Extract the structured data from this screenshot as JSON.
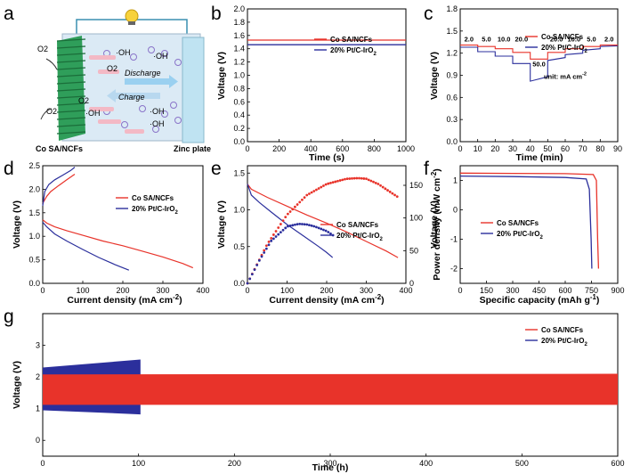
{
  "colors": {
    "co": "#e8332a",
    "pt": "#2b2f9c"
  },
  "panels": {
    "a": "a",
    "b": "b",
    "c": "c",
    "d": "d",
    "e": "e",
    "f": "f",
    "g": "g"
  },
  "schematic": {
    "left_label": "Co SA/NCFs",
    "right_label": "Zinc plate",
    "discharge": "Discharge",
    "charge": "Charge",
    "species": [
      "O2",
      "OH",
      "OH",
      "O2",
      "O2",
      "OH",
      "OH",
      "OH",
      "O2"
    ]
  },
  "legend": {
    "co": "Co SA/NCFs",
    "pt": "20% Pt/C-IrO2"
  },
  "chart_data": [
    {
      "id": "b",
      "type": "line",
      "xlabel": "Time (s)",
      "ylabel": "Voltage (V)",
      "xlim": [
        0,
        1000
      ],
      "ylim": [
        0.0,
        2.0
      ],
      "xticks": [
        0,
        200,
        400,
        600,
        800,
        1000
      ],
      "yticks": [
        0.0,
        0.2,
        0.4,
        0.6,
        0.8,
        1.0,
        1.2,
        1.4,
        1.6,
        1.8,
        2.0
      ],
      "series": [
        {
          "name": "Co SA/NCFs",
          "x": [
            0,
            1000
          ],
          "y": [
            1.53,
            1.53
          ]
        },
        {
          "name": "20% Pt/C-IrO2",
          "x": [
            0,
            1000
          ],
          "y": [
            1.46,
            1.46
          ]
        }
      ]
    },
    {
      "id": "c",
      "type": "line",
      "xlabel": "Time (min)",
      "ylabel": "Voltage (V)",
      "xlim": [
        0,
        90
      ],
      "ylim": [
        0.0,
        1.8
      ],
      "xticks": [
        0,
        10,
        20,
        30,
        40,
        50,
        60,
        70,
        80,
        90
      ],
      "yticks": [
        0.0,
        0.3,
        0.6,
        0.9,
        1.2,
        1.5,
        1.8
      ],
      "annotation": "unit: mA cm-2",
      "current_labels": [
        "2.0",
        "5.0",
        "10.0",
        "20.0",
        "50.0",
        "20.0",
        "10.0",
        "5.0",
        "2.0"
      ],
      "series": [
        {
          "name": "Co SA/NCFs",
          "x": [
            0,
            10,
            10,
            20,
            20,
            30,
            30,
            40,
            40,
            50,
            50,
            60,
            60,
            70,
            70,
            80,
            80,
            90
          ],
          "y": [
            1.31,
            1.31,
            1.29,
            1.29,
            1.26,
            1.26,
            1.21,
            1.21,
            1.12,
            1.12,
            1.21,
            1.21,
            1.26,
            1.26,
            1.29,
            1.29,
            1.31,
            1.31
          ]
        },
        {
          "name": "20% Pt/C-IrO2",
          "x": [
            0,
            10,
            10,
            20,
            20,
            30,
            30,
            40,
            40,
            50,
            50,
            60,
            60,
            70,
            70,
            80,
            80,
            90
          ],
          "y": [
            1.28,
            1.28,
            1.22,
            1.22,
            1.16,
            1.16,
            1.06,
            1.06,
            0.82,
            0.88,
            1.1,
            1.14,
            1.18,
            1.2,
            1.24,
            1.26,
            1.29,
            1.3
          ]
        }
      ]
    },
    {
      "id": "d",
      "type": "line",
      "xlabel": "Current density (mA cm-2)",
      "ylabel": "Voltage (V)",
      "xlim": [
        0,
        400
      ],
      "ylim": [
        0.0,
        2.5
      ],
      "xticks": [
        0,
        100,
        200,
        300,
        400
      ],
      "yticks": [
        0.0,
        0.5,
        1.0,
        1.5,
        2.0,
        2.5
      ],
      "series": [
        {
          "name": "Co SA/NCFs charge",
          "x": [
            0,
            10,
            20,
            40,
            60,
            80
          ],
          "y": [
            1.7,
            1.85,
            1.95,
            2.08,
            2.2,
            2.32
          ]
        },
        {
          "name": "Co SA/NCFs discharge",
          "x": [
            0,
            10,
            30,
            60,
            100,
            150,
            200,
            250,
            300,
            350,
            375
          ],
          "y": [
            1.35,
            1.28,
            1.2,
            1.12,
            1.02,
            0.9,
            0.8,
            0.68,
            0.56,
            0.42,
            0.33
          ]
        },
        {
          "name": "20% Pt/C-IrO2 charge",
          "x": [
            0,
            5,
            15,
            30,
            50,
            70,
            80
          ],
          "y": [
            1.65,
            1.95,
            2.1,
            2.2,
            2.3,
            2.4,
            2.47
          ]
        },
        {
          "name": "20% Pt/C-IrO2 discharge",
          "x": [
            0,
            10,
            30,
            60,
            100,
            140,
            180,
            215
          ],
          "y": [
            1.3,
            1.2,
            1.05,
            0.9,
            0.72,
            0.55,
            0.4,
            0.28
          ]
        }
      ]
    },
    {
      "id": "e",
      "type": "line",
      "xlabel": "Current density (mA cm-2)",
      "ylabel": "Voltage (V)",
      "y2label": "Power density (mW cm-2)",
      "xlim": [
        0,
        400
      ],
      "ylim": [
        0.0,
        1.6
      ],
      "y2lim": [
        0,
        180
      ],
      "xticks": [
        0,
        100,
        200,
        300,
        400
      ],
      "yticks": [
        0.0,
        0.5,
        1.0,
        1.5
      ],
      "y2ticks": [
        0,
        50,
        100,
        150
      ],
      "series": [
        {
          "name": "Co SA/NCFs voltage",
          "x": [
            0,
            10,
            50,
            100,
            150,
            200,
            250,
            300,
            350,
            380
          ],
          "y": [
            1.35,
            1.28,
            1.17,
            1.05,
            0.93,
            0.82,
            0.7,
            0.57,
            0.44,
            0.35
          ]
        },
        {
          "name": "20% Pt/C-IrO2 voltage",
          "x": [
            0,
            10,
            30,
            60,
            100,
            140,
            180,
            200,
            215
          ],
          "y": [
            1.35,
            1.2,
            1.1,
            0.97,
            0.8,
            0.65,
            0.5,
            0.42,
            0.35
          ]
        },
        {
          "name": "Co SA/NCFs power",
          "x": [
            0,
            50,
            100,
            150,
            200,
            250,
            280,
            300,
            330,
            360,
            380
          ],
          "y": [
            0,
            60,
            105,
            135,
            152,
            160,
            161,
            160,
            152,
            140,
            132
          ]
        },
        {
          "name": "20% Pt/C-IrO2 power",
          "x": [
            0,
            30,
            60,
            100,
            130,
            150,
            170,
            200,
            220
          ],
          "y": [
            0,
            35,
            65,
            87,
            91,
            90,
            87,
            80,
            72
          ]
        }
      ]
    },
    {
      "id": "f",
      "type": "line",
      "xlabel": "Specific capacity (mAh g-1)",
      "ylabel": "Voltage (V)",
      "xlim": [
        0,
        900
      ],
      "ylim": [
        -2.5,
        1.5
      ],
      "xticks": [
        0,
        150,
        300,
        450,
        600,
        750,
        900
      ],
      "yticks": [
        -2,
        -1,
        0,
        1
      ],
      "series": [
        {
          "name": "Co SA/NCFs",
          "x": [
            0,
            300,
            600,
            760,
            778,
            785,
            790
          ],
          "y": [
            1.25,
            1.24,
            1.23,
            1.2,
            1.0,
            -1.0,
            -2.0
          ]
        },
        {
          "name": "20% Pt/C-IrO2",
          "x": [
            0,
            300,
            600,
            720,
            738,
            748,
            752
          ],
          "y": [
            1.15,
            1.13,
            1.1,
            1.05,
            0.7,
            -1.0,
            -2.0
          ]
        }
      ]
    },
    {
      "id": "g",
      "type": "line",
      "xlabel": "Time (h)",
      "ylabel": "Voltage (V)",
      "xlim": [
        0,
        600
      ],
      "ylim": [
        -0.5,
        4.0
      ],
      "xticks": [
        0,
        100,
        200,
        300,
        400,
        500,
        600
      ],
      "yticks": [
        0,
        1,
        2,
        3
      ],
      "series": [
        {
          "name": "20% Pt/C-IrO2",
          "x_range": [
            0,
            102
          ],
          "charge": [
            2.3,
            2.55
          ],
          "discharge": [
            0.95,
            0.82
          ]
        },
        {
          "name": "Co SA/NCFs",
          "x_range": [
            0,
            600
          ],
          "charge": [
            2.08,
            2.1
          ],
          "discharge": [
            1.12,
            1.12
          ]
        }
      ]
    }
  ]
}
